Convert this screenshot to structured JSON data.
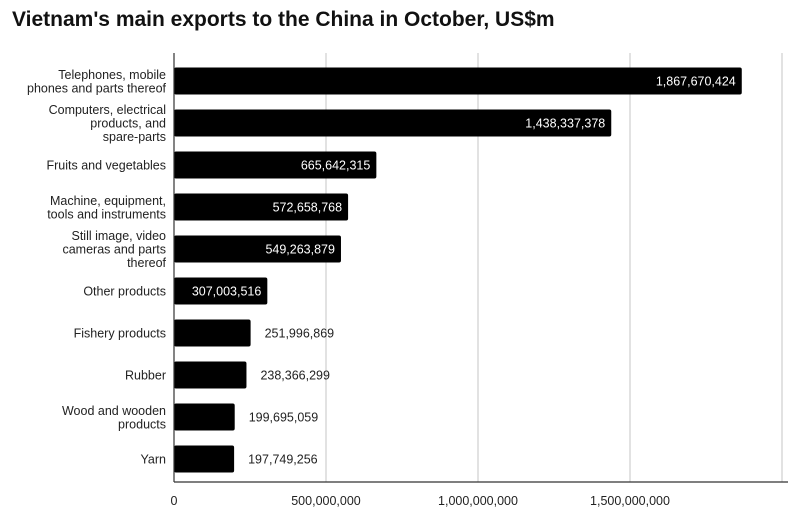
{
  "chart_data": {
    "type": "bar",
    "orientation": "horizontal",
    "title": "Vietnam's main exports to the China in October, US$m",
    "categories": [
      [
        "Telephones, mobile",
        "phones and parts thereof"
      ],
      [
        "Computers, electrical",
        "products, and",
        "spare-parts"
      ],
      [
        "Fruits and vegetables"
      ],
      [
        "Machine, equipment,",
        "tools and instruments"
      ],
      [
        "Still image, video",
        "cameras and parts",
        "thereof"
      ],
      [
        "Other products"
      ],
      [
        "Fishery products"
      ],
      [
        "Rubber"
      ],
      [
        "Wood and wooden",
        "products"
      ],
      [
        "Yarn"
      ]
    ],
    "values": [
      1867670424,
      1438337378,
      665642315,
      572658768,
      549263879,
      307003516,
      251996869,
      238366299,
      199695059,
      197749256
    ],
    "data_labels": [
      "1,867,670,424",
      "1,438,337,378",
      "665,642,315",
      "572,658,768",
      "549,263,879",
      "307,003,516",
      "251,996,869",
      "238,366,299",
      "199,695,059",
      "197,749,256"
    ],
    "xlim": [
      0,
      2000000000
    ],
    "x_ticks": [
      0,
      500000000,
      1000000000,
      1500000000,
      2000000000
    ],
    "x_tick_labels": [
      "0",
      "500,000,000",
      "1,000,000,000",
      "1,500,000,000",
      ""
    ],
    "grid": true,
    "bar_color": "#000000",
    "grid_color": "#d9d9d9"
  }
}
